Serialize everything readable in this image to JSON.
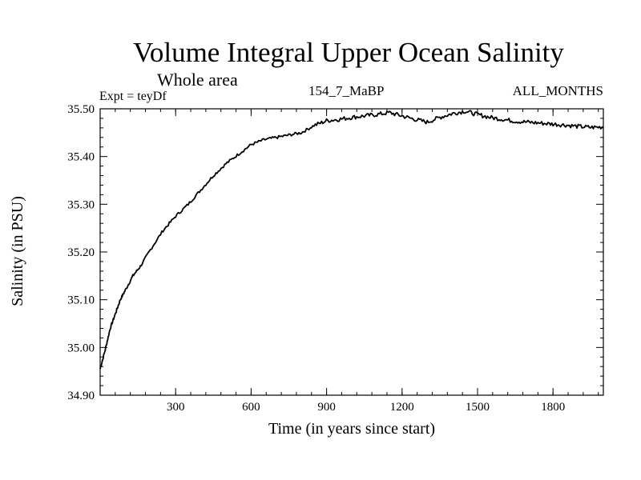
{
  "chart_data": {
    "type": "line",
    "title": "Volume Integral Upper Ocean Salinity",
    "subtitle": "Whole area",
    "left_label": "Expt = teyDf",
    "center_label": "154_7_MaBP",
    "right_label": "ALL_MONTHS",
    "xlabel": "Time (in years since start)",
    "ylabel": "Salinity (in PSU)",
    "xlim": [
      0,
      2000
    ],
    "ylim": [
      34.9,
      35.5
    ],
    "xticks": [
      300,
      600,
      900,
      1200,
      1500,
      1800
    ],
    "xtick_labels": [
      "300",
      "600",
      "900",
      "1200",
      "1500",
      "1800"
    ],
    "yticks": [
      34.9,
      35.0,
      35.1,
      35.2,
      35.3,
      35.4,
      35.5
    ],
    "ytick_labels": [
      "34.90",
      "35.00",
      "35.10",
      "35.20",
      "35.30",
      "35.40",
      "35.50"
    ],
    "grid": false,
    "series": [
      {
        "name": "salinity",
        "x": [
          0,
          20,
          40,
          60,
          80,
          100,
          130,
          160,
          200,
          250,
          300,
          350,
          400,
          450,
          500,
          550,
          600,
          650,
          700,
          750,
          800,
          850,
          900,
          950,
          1000,
          1050,
          1100,
          1150,
          1200,
          1250,
          1300,
          1350,
          1400,
          1450,
          1500,
          1550,
          1600,
          1650,
          1700,
          1750,
          1800,
          1850,
          1900,
          1950,
          2000
        ],
        "y": [
          34.955,
          34.995,
          35.04,
          35.07,
          35.1,
          35.12,
          35.15,
          35.17,
          35.205,
          35.245,
          35.275,
          35.3,
          35.33,
          35.36,
          35.385,
          35.405,
          35.425,
          35.435,
          35.44,
          35.445,
          35.45,
          35.465,
          35.475,
          35.478,
          35.482,
          35.485,
          35.488,
          35.492,
          35.485,
          35.478,
          35.472,
          35.482,
          35.49,
          35.495,
          35.488,
          35.482,
          35.478,
          35.474,
          35.472,
          35.47,
          35.468,
          35.466,
          35.463,
          35.461,
          35.462
        ]
      }
    ]
  }
}
